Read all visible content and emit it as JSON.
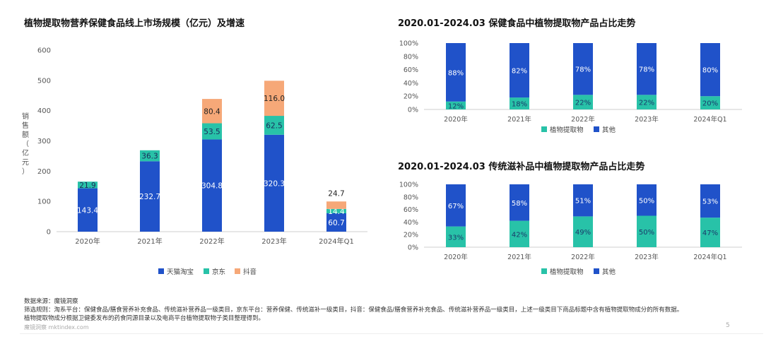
{
  "chart_data": [
    {
      "id": "market",
      "type": "bar",
      "stacked": true,
      "title": "植物提取物营养保健食品线上市场规模（亿元）及增速",
      "ylabel": "销售额（亿元）",
      "ylim": [
        0,
        600
      ],
      "yticks": [
        "0",
        "100",
        "200",
        "300",
        "400",
        "500",
        "600"
      ],
      "categories": [
        "2020年",
        "2021年",
        "2022年",
        "2023年",
        "2024年Q1"
      ],
      "series": [
        {
          "name": "天猫淘宝",
          "color": "#2052C9",
          "values": [
            143.4,
            232.7,
            304.8,
            320.3,
            60.7
          ]
        },
        {
          "name": "京东",
          "color": "#28C2A8",
          "values": [
            21.9,
            36.3,
            53.5,
            62.5,
            14.4
          ]
        },
        {
          "name": "抖音",
          "color": "#F6A878",
          "values": [
            null,
            null,
            80.4,
            116.0,
            24.7
          ]
        }
      ],
      "labels": [
        [
          "143.4",
          "232.7",
          "304.8",
          "320.3",
          "60.7"
        ],
        [
          "21.9",
          "36.3",
          "53.5",
          "62.5",
          "14.4"
        ],
        [
          "",
          "",
          "80.4",
          "116.0",
          "24.7"
        ]
      ],
      "legend": "bottom"
    },
    {
      "id": "health",
      "type": "bar",
      "stacked": true,
      "percent": true,
      "title": "2020.01-2024.03 保健食品中植物提取物产品占比走势",
      "ylim": [
        0,
        100
      ],
      "yticks": [
        "0%",
        "20%",
        "40%",
        "60%",
        "80%",
        "100%"
      ],
      "categories": [
        "2020年",
        "2021年",
        "2022年",
        "2023年",
        "2024年Q1"
      ],
      "series": [
        {
          "name": "植物提取物",
          "color": "#28C2A8",
          "values": [
            12,
            18,
            22,
            22,
            20
          ]
        },
        {
          "name": "其他",
          "color": "#2052C9",
          "values": [
            88,
            82,
            78,
            78,
            80
          ]
        }
      ],
      "labels": [
        [
          "12%",
          "18%",
          "22%",
          "22%",
          "20%"
        ],
        [
          "88%",
          "82%",
          "78%",
          "78%",
          "80%"
        ]
      ],
      "legend": "bottom"
    },
    {
      "id": "tonic",
      "type": "bar",
      "stacked": true,
      "percent": true,
      "title": "2020.01-2024.03 传统滋补品中植物提取物产品占比走势",
      "ylim": [
        0,
        100
      ],
      "yticks": [
        "0%",
        "20%",
        "40%",
        "60%",
        "80%",
        "100%"
      ],
      "categories": [
        "2020年",
        "2021年",
        "2022年",
        "2023年",
        "2024年Q1"
      ],
      "series": [
        {
          "name": "植物提取物",
          "color": "#28C2A8",
          "values": [
            33,
            42,
            49,
            50,
            47
          ]
        },
        {
          "name": "其他",
          "color": "#2052C9",
          "values": [
            67,
            58,
            51,
            50,
            53
          ]
        }
      ],
      "labels": [
        [
          "33%",
          "42%",
          "49%",
          "50%",
          "47%"
        ],
        [
          "67%",
          "58%",
          "51%",
          "50%",
          "53%"
        ]
      ],
      "legend": "bottom"
    }
  ],
  "footer": {
    "source": "数据来源：魔镜洞察",
    "rule1": "筛选规则：淘系平台：保健食品/膳食营养补充食品、传统滋补营养品一级类目，京东平台：营养保健、传统滋补一级类目，抖音：保健食品/膳食营养补充食品、传统滋补营养品一级类目，上述一级类目下商品标题中含有植物提取物成分的所有数据。",
    "rule2": "植物提取物成分根据卫健委发布的药食同源目录以及电商平台植物提取物子类目整理得到。",
    "brand": "魔镜洞察 mktindex.com",
    "page": "5"
  }
}
